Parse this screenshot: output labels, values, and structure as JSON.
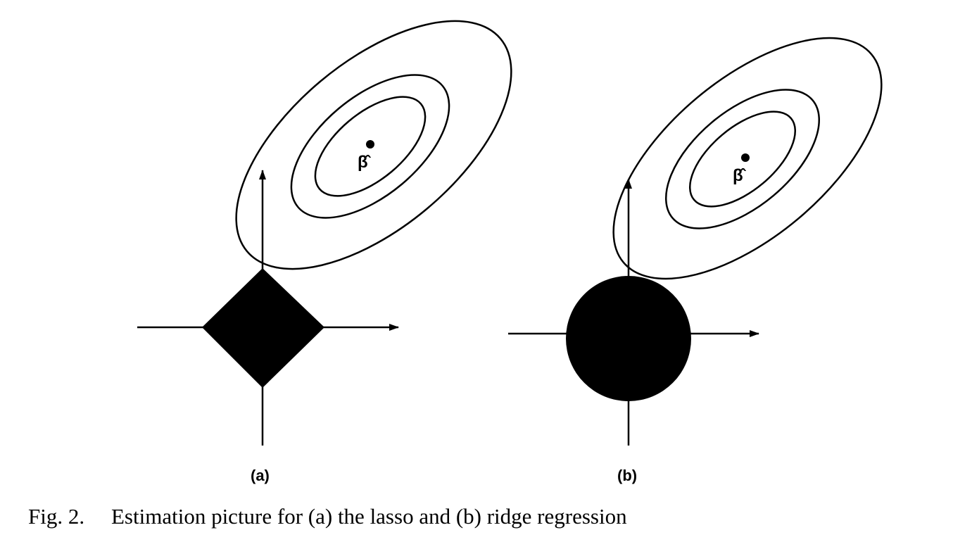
{
  "caption": {
    "figure_number": "Fig. 2.",
    "text": "Estimation picture for (a) the lasso and (b) ridge regression"
  },
  "panels": [
    {
      "label": "(a)",
      "estimate_label": "β̂",
      "constraint_shape": "diamond"
    },
    {
      "label": "(b)",
      "estimate_label": "β̂",
      "constraint_shape": "disk"
    }
  ],
  "colors": {
    "ink": "#000000",
    "paper": "#ffffff"
  }
}
